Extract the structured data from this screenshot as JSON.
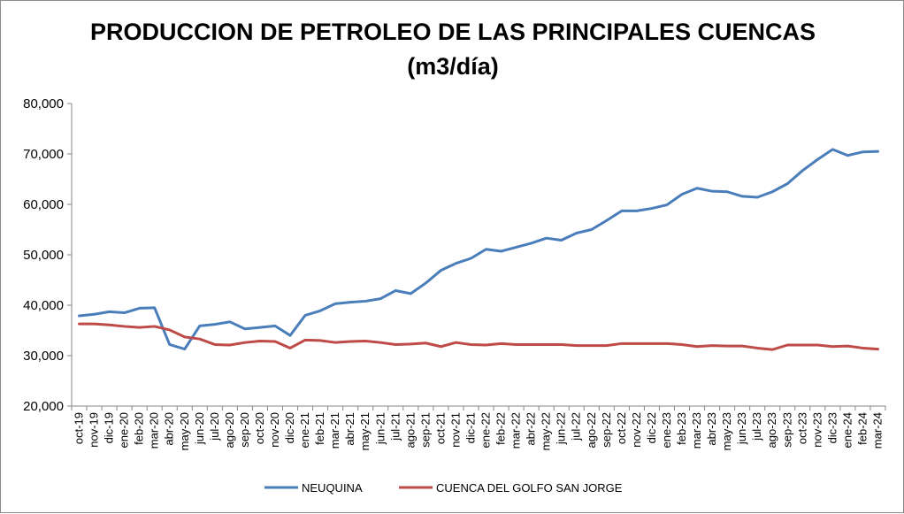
{
  "chart_data": {
    "type": "line",
    "title": "PRODUCCION DE PETROLEO DE LAS PRINCIPALES CUENCAS",
    "subtitle": "(m3/día)",
    "xlabel": "",
    "ylabel": "",
    "ylim": [
      20000,
      80000
    ],
    "yticks": [
      "20,000",
      "30,000",
      "40,000",
      "50,000",
      "60,000",
      "70,000",
      "80,000"
    ],
    "grid": false,
    "legend_position": "bottom",
    "categories": [
      "oct-19",
      "nov-19",
      "dic-19",
      "ene-20",
      "feb-20",
      "mar-20",
      "abr-20",
      "may-20",
      "jun-20",
      "jul-20",
      "ago-20",
      "sep-20",
      "oct-20",
      "nov-20",
      "dic-20",
      "ene-21",
      "feb-21",
      "mar-21",
      "abr-21",
      "may-21",
      "jun-21",
      "jul-21",
      "ago-21",
      "sep-21",
      "oct-21",
      "nov-21",
      "dic-21",
      "ene-22",
      "feb-22",
      "mar-22",
      "abr-22",
      "may-22",
      "jun-22",
      "jul-22",
      "ago-22",
      "sep-22",
      "oct-22",
      "nov-22",
      "dic-22",
      "ene-23",
      "feb-23",
      "mar-23",
      "abr-23",
      "may-23",
      "jun-23",
      "jul-23",
      "ago-23",
      "sep-23",
      "oct-23",
      "nov-23",
      "dic-23",
      "ene-24",
      "feb-24",
      "mar-24"
    ],
    "series": [
      {
        "name": "NEUQUINA",
        "color": "#4a7ebb",
        "values": [
          37900,
          38200,
          38700,
          38500,
          39400,
          39500,
          32200,
          31300,
          35900,
          36200,
          36700,
          35300,
          35600,
          35900,
          34000,
          38000,
          38900,
          40300,
          40600,
          40800,
          41300,
          42900,
          42300,
          44400,
          46900,
          48300,
          49300,
          51100,
          50700,
          51500,
          52300,
          53300,
          52900,
          54300,
          55000,
          56800,
          58700,
          58700,
          59200,
          59900,
          62000,
          63200,
          62600,
          62500,
          61600,
          61400,
          62500,
          64100,
          66700,
          68900,
          70900,
          69700,
          70400,
          70500
        ]
      },
      {
        "name": "CUENCA DEL GOLFO SAN JORGE",
        "color": "#be4b48",
        "values": [
          36300,
          36300,
          36100,
          35800,
          35600,
          35800,
          35100,
          33700,
          33300,
          32200,
          32100,
          32600,
          32900,
          32800,
          31500,
          33100,
          33000,
          32600,
          32800,
          32900,
          32600,
          32200,
          32300,
          32500,
          31800,
          32600,
          32200,
          32100,
          32400,
          32200,
          32200,
          32200,
          32200,
          32000,
          32000,
          32000,
          32400,
          32400,
          32400,
          32400,
          32200,
          31800,
          32000,
          31900,
          31900,
          31500,
          31200,
          32100,
          32100,
          32100,
          31800,
          31900,
          31500,
          31300
        ]
      }
    ]
  }
}
